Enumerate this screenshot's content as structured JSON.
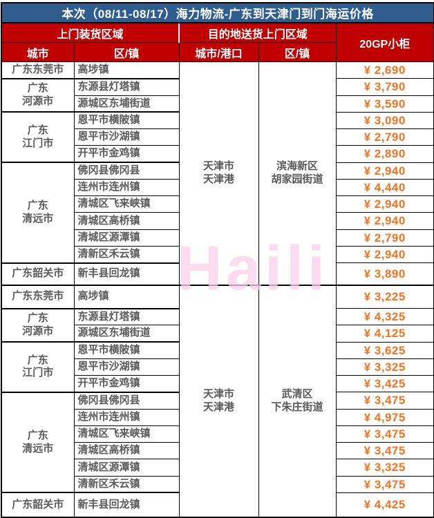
{
  "title": "本次（08/11-08/17）海力物流-广东到天津门到门海运价格",
  "header": {
    "pickup_area": "上门装货区域",
    "delivery_area": "目的地送货上门区域",
    "container_type": "20GP小柜",
    "col_city": "城市",
    "col_district": "区/镇",
    "col_city_port": "城市/港口",
    "col_district_2": "区/镇"
  },
  "watermark": "Haili",
  "colors": {
    "title_bg": "#2F5E8E",
    "header_bg": "#C00000",
    "price_text": "#F8721F",
    "body_text": "#595959",
    "watermark_pink": "#FAD0EA",
    "header_text": "#FFFFFF"
  },
  "sections": [
    {
      "destination": {
        "city_port": "天津市\n天津港",
        "district": "滨海新区\n胡家园街道"
      },
      "groups": [
        {
          "city": "广东东莞市",
          "rows": [
            {
              "town": "高埗镇",
              "price": "¥ 2,690"
            }
          ]
        },
        {
          "city": "广东\n河源市",
          "rows": [
            {
              "town": "东源县灯塔镇",
              "price": "¥ 3,790"
            },
            {
              "town": "源城区东埔街道",
              "price": "¥ 3,590"
            }
          ]
        },
        {
          "city": "广东\n江门市",
          "rows": [
            {
              "town": "恩平市横陂镇",
              "price": "¥ 3,090"
            },
            {
              "town": "恩平市沙湖镇",
              "price": "¥ 2,790"
            },
            {
              "town": "开平市金鸡镇",
              "price": "¥ 2,890"
            }
          ]
        },
        {
          "city": "广东\n清远市",
          "rows": [
            {
              "town": "佛冈县佛冈县",
              "price": "¥ 2,940"
            },
            {
              "town": "连州市连州镇",
              "price": "¥ 4,440"
            },
            {
              "town": "清城区飞来峡镇",
              "price": "¥ 2,940"
            },
            {
              "town": "清城区高桥镇",
              "price": "¥ 2,940"
            },
            {
              "town": "清城区源潭镇",
              "price": "¥ 2,790"
            },
            {
              "town": "清新区禾云镇",
              "price": "¥ 2,940"
            }
          ]
        },
        {
          "city": "广东韶关市",
          "rows": [
            {
              "town": "新丰县回龙镇",
              "price": "¥ 3,890"
            }
          ]
        }
      ]
    },
    {
      "destination": {
        "city_port": "天津市\n天津港",
        "district": "武清区\n下朱庄街道"
      },
      "groups": [
        {
          "city": "广东东莞市",
          "rows": [
            {
              "town": "高埗镇",
              "price": "¥ 3,225"
            }
          ]
        },
        {
          "city": "广东\n河源市",
          "rows": [
            {
              "town": "东源县灯塔镇",
              "price": "¥ 4,325"
            },
            {
              "town": "源城区东埔街道",
              "price": "¥ 4,125"
            }
          ]
        },
        {
          "city": "广东\n江门市",
          "rows": [
            {
              "town": "恩平市横陂镇",
              "price": "¥ 3,625"
            },
            {
              "town": "恩平市沙湖镇",
              "price": "¥ 3,325"
            },
            {
              "town": "开平市金鸡镇",
              "price": "¥ 3,425"
            }
          ]
        },
        {
          "city": "广东\n清远市",
          "rows": [
            {
              "town": "佛冈县佛冈县",
              "price": "¥ 3,475"
            },
            {
              "town": "连州市连州镇",
              "price": "¥ 4,975"
            },
            {
              "town": "清城区飞来峡镇",
              "price": "¥ 3,475"
            },
            {
              "town": "清城区高桥镇",
              "price": "¥ 3,475"
            },
            {
              "town": "清城区源潭镇",
              "price": "¥ 3,325"
            },
            {
              "town": "清新区禾云镇",
              "price": "¥ 3,475"
            }
          ]
        },
        {
          "city": "广东韶关市",
          "rows": [
            {
              "town": "新丰县回龙镇",
              "price": "¥ 4,425"
            }
          ]
        }
      ]
    }
  ]
}
